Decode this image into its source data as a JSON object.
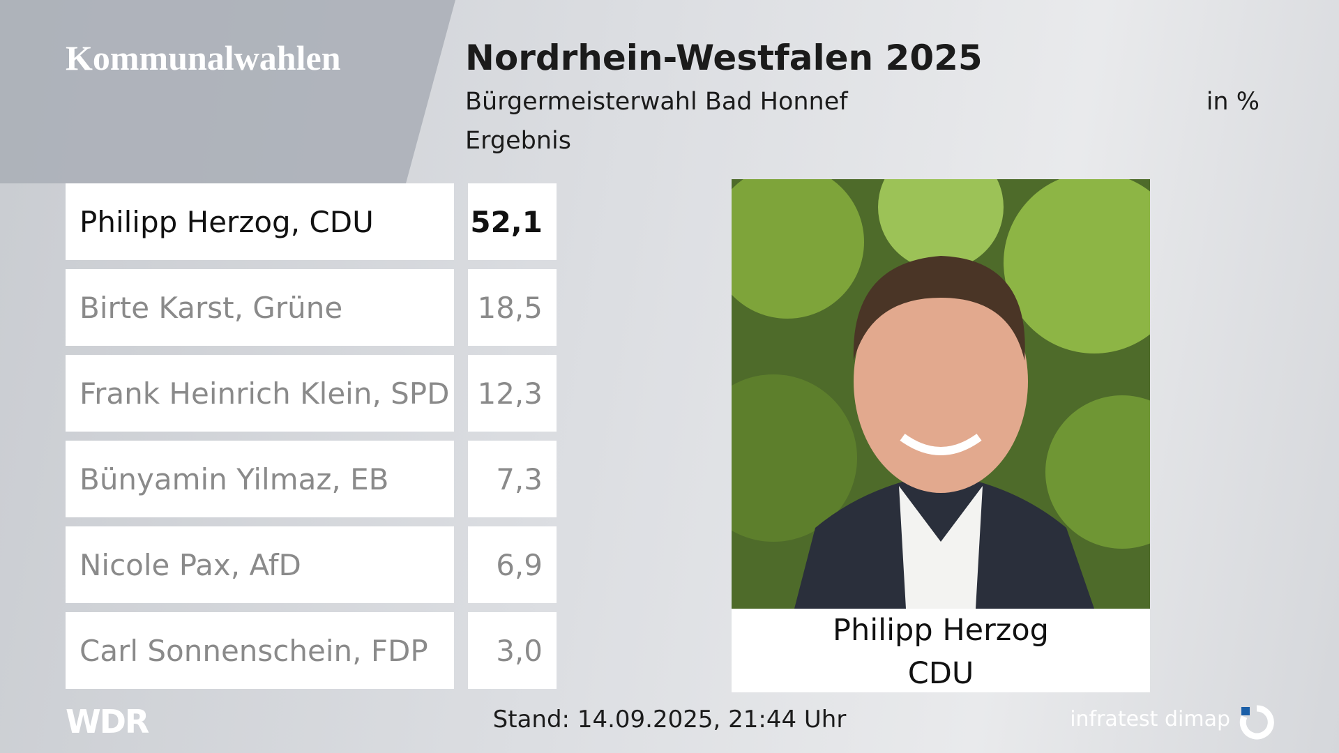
{
  "header": {
    "section": "Kommunalwahlen",
    "title": "Nordrhein-Westfalen 2025",
    "subtitle": "Bürgermeisterwahl Bad Honnef",
    "unit": "in %",
    "label": "Ergebnis"
  },
  "table": {
    "rows": [
      [
        "Philipp Herzog, CDU",
        "52,1"
      ],
      [
        "Birte Karst, Grüne",
        "18,5"
      ],
      [
        "Frank Heinrich Klein, SPD",
        "12,3"
      ],
      [
        "Bünyamin Yilmaz, EB",
        "7,3"
      ],
      [
        "Nicole Pax, AfD",
        "6,9"
      ],
      [
        "Carl Sonnenschein, FDP",
        "3,0"
      ]
    ]
  },
  "portrait": {
    "name": "Philipp Herzog",
    "party": "CDU"
  },
  "footer": {
    "logo": "WDR",
    "stand": "Stand: 14.09.2025, 21:44 Uhr",
    "source": "infratest dimap"
  }
}
